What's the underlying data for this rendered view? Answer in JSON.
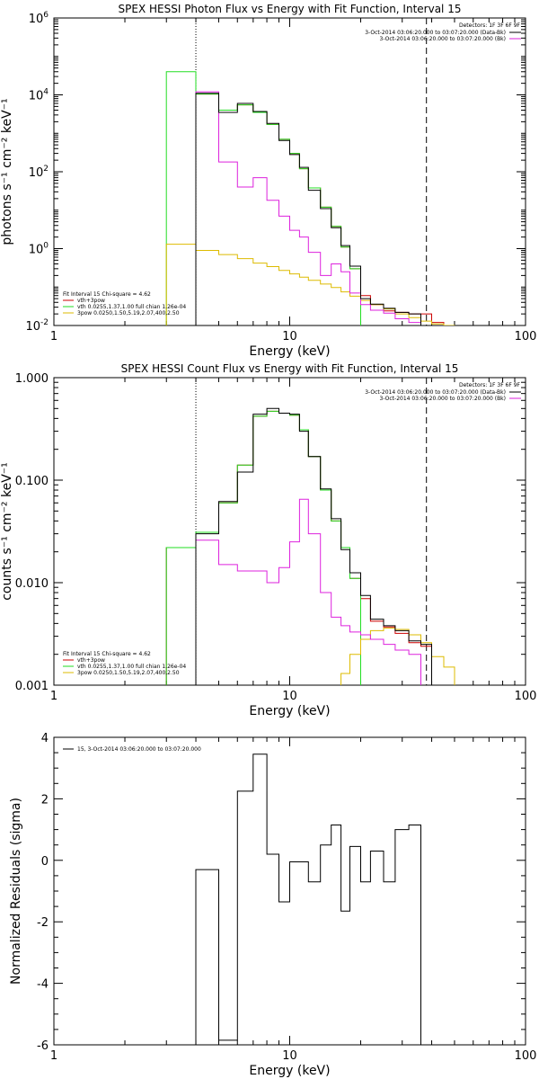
{
  "colors": {
    "black": "#000000",
    "red": "#cc0000",
    "green": "#22dd22",
    "magenta": "#dd22dd",
    "yellow": "#ddbb00"
  },
  "chart_data": [
    {
      "type": "line",
      "title": "SPEX HESSI Photon Flux vs Energy with Fit Function, Interval 15",
      "xlabel": "Energy (keV)",
      "ylabel": "photons s⁻¹ cm⁻² keV⁻¹",
      "xscale": "log",
      "yscale": "log",
      "xlim": [
        1,
        100
      ],
      "ylim": [
        0.01,
        1000000
      ],
      "x_tick_labels": [
        "1",
        "10",
        "100"
      ],
      "y_tick_labels": [
        "10^-2",
        "10^0",
        "10^2",
        "10^4",
        "10^6"
      ],
      "vlines": [
        {
          "x": 4,
          "style": "dotted"
        },
        {
          "x": 38,
          "style": "dashed"
        }
      ],
      "legend_top": {
        "title": "Detectors: 1F 3F 6F 9F",
        "entries": [
          "3-Oct-2014 03:06:20.000 to 03:07:20.000 (Data-Bk)",
          "3-Oct-2014 03:06:20.000 to 03:07:20.000 (Bk)"
        ]
      },
      "legend_bottom": {
        "header": "Fit Interval 15   Chi-square = 4.62",
        "entries": [
          "vth+3pow",
          "vth 0.0255,1.37,1.00  full chian 1.26e-04",
          "3pow 0.0250,1.50,5.19,2.07,400,2.50"
        ]
      },
      "x_edges": [
        3,
        4,
        5,
        6,
        7,
        8,
        9,
        10,
        11,
        12,
        13.5,
        15,
        16.5,
        18,
        20,
        22,
        25,
        28,
        32,
        36,
        40,
        45,
        50
      ],
      "series": [
        {
          "name": "vth+3pow",
          "color": "red",
          "values": [
            null,
            10500,
            4000,
            5500,
            3500,
            1700,
            700,
            300,
            120,
            38,
            12,
            3.8,
            1.1,
            0.3,
            0.06,
            0.035,
            0.024,
            0.022,
            0.02,
            0.02,
            0.012,
            0.01
          ]
        },
        {
          "name": "vth 0.0255,1.37,1.00  full chian 1.26e-04",
          "color": "green",
          "values": [
            40000,
            10500,
            4000,
            5500,
            3500,
            1700,
            700,
            300,
            120,
            38,
            12,
            3.8,
            1.1,
            0.3,
            null,
            null,
            null,
            null,
            null,
            null,
            null,
            null
          ]
        },
        {
          "name": "3pow 0.0250,1.50,5.19,2.07,400,2.50",
          "color": "yellow",
          "values": [
            1.3,
            0.9,
            0.7,
            0.55,
            0.42,
            0.34,
            0.27,
            0.22,
            0.18,
            0.15,
            0.12,
            0.097,
            0.075,
            0.058,
            0.045,
            0.035,
            0.027,
            0.02,
            0.016,
            0.013,
            0.011,
            0.01
          ]
        },
        {
          "name": "3-Oct-2014 03:06:20.000 to 03:07:20.000 (Bk)",
          "color": "magenta",
          "values": [
            null,
            12000,
            180,
            40,
            70,
            18,
            7,
            3,
            2,
            0.8,
            0.2,
            0.4,
            0.25,
            0.07,
            0.035,
            0.025,
            0.021,
            0.015,
            0.012,
            null,
            null,
            null
          ]
        },
        {
          "name": "3-Oct-2014 03:06:20.000 to 03:07:20.000 (Data-Bk)",
          "color": "black",
          "values": [
            null,
            11000,
            3500,
            6000,
            3700,
            1800,
            650,
            280,
            130,
            33,
            11,
            3.5,
            1.2,
            0.35,
            0.05,
            0.036,
            0.028,
            0.022,
            0.02,
            null,
            null,
            null
          ]
        }
      ]
    },
    {
      "type": "line",
      "title": "SPEX HESSI Count Flux vs Energy with Fit Function, Interval 15",
      "xlabel": "Energy (keV)",
      "ylabel": "counts s⁻¹ cm⁻² keV⁻¹",
      "xscale": "log",
      "yscale": "log",
      "xlim": [
        1,
        100
      ],
      "ylim": [
        0.001,
        1.0
      ],
      "x_tick_labels": [
        "1",
        "10",
        "100"
      ],
      "y_tick_labels": [
        "0.001",
        "0.010",
        "0.100",
        "1.000"
      ],
      "vlines": [
        {
          "x": 4,
          "style": "dotted"
        },
        {
          "x": 38,
          "style": "dashed"
        }
      ],
      "legend_top": {
        "title": "Detectors: 1F 3F 6F 9F",
        "entries": [
          "3-Oct-2014 03:06:20.000 to 03:07:20.000 (Data-Bk)",
          "3-Oct-2014 03:06:20.000 to 03:07:20.000 (Bk)"
        ]
      },
      "legend_bottom": {
        "header": "Fit Interval 15   Chi-square = 4.62",
        "entries": [
          "vth+3pow",
          "vth 0.0255,1.37,1.00  full chian 1.26e-04",
          "3pow 0.0250,1.50,5.19,2.07,400,2.50"
        ]
      },
      "x_edges": [
        3,
        4,
        5,
        6,
        7,
        8,
        9,
        10,
        11,
        12,
        13.5,
        15,
        16.5,
        18,
        20,
        22,
        25,
        28,
        32,
        36,
        40,
        45,
        50
      ],
      "series": [
        {
          "name": "vth+3pow",
          "color": "red",
          "values": [
            0.022,
            0.031,
            0.06,
            0.14,
            0.42,
            0.47,
            0.45,
            0.43,
            0.31,
            0.17,
            0.08,
            0.04,
            0.022,
            0.011,
            0.007,
            0.0042,
            0.0037,
            0.0032,
            0.0026,
            0.0024,
            null,
            null
          ]
        },
        {
          "name": "vth 0.0255,1.37,1.00  full chian 1.26e-04",
          "color": "green",
          "values": [
            0.022,
            0.031,
            0.06,
            0.14,
            0.42,
            0.47,
            0.45,
            0.43,
            0.31,
            0.17,
            0.08,
            0.04,
            0.022,
            0.011,
            null,
            null,
            null,
            null,
            null,
            null,
            null,
            null
          ]
        },
        {
          "name": "3pow 0.0250,1.50,5.19,2.07,400,2.50",
          "color": "yellow",
          "values": [
            null,
            null,
            null,
            null,
            null,
            null,
            null,
            null,
            null,
            null,
            null,
            null,
            0.0013,
            0.002,
            0.0028,
            0.0034,
            0.0036,
            0.0035,
            0.0031,
            0.0026,
            0.0019,
            0.0015
          ]
        },
        {
          "name": "3-Oct-2014 03:06:20.000 to 03:07:20.000 (Bk)",
          "color": "magenta",
          "values": [
            null,
            0.026,
            0.015,
            0.013,
            0.013,
            0.01,
            0.014,
            0.025,
            0.065,
            0.03,
            0.008,
            0.0046,
            0.0038,
            0.0033,
            0.0031,
            0.0028,
            0.0025,
            0.0022,
            0.002,
            null,
            null,
            null
          ]
        },
        {
          "name": "3-Oct-2014 03:06:20.000 to 03:07:20.000 (Data-Bk)",
          "color": "black",
          "values": [
            null,
            0.03,
            0.062,
            0.12,
            0.44,
            0.5,
            0.45,
            0.44,
            0.3,
            0.17,
            0.082,
            0.042,
            0.021,
            0.0125,
            0.0075,
            0.0044,
            0.0038,
            0.0034,
            0.0027,
            0.0025,
            null,
            null
          ]
        }
      ]
    },
    {
      "type": "line",
      "title": "",
      "xlabel": "Energy (keV)",
      "ylabel": "Normalized Residuals (sigma)",
      "xscale": "log",
      "yscale": "linear",
      "xlim": [
        1,
        100
      ],
      "ylim": [
        -6,
        4
      ],
      "x_tick_labels": [
        "1",
        "10",
        "100"
      ],
      "y_tick_labels": [
        "-6",
        "-4",
        "-2",
        "0",
        "2",
        "4"
      ],
      "legend_text": "15,  3-Oct-2014 03:06:20.000 to 03:07:20.000",
      "x_edges": [
        4,
        5,
        6,
        7,
        8,
        9,
        10,
        11,
        12,
        13.5,
        15,
        16.5,
        18,
        20,
        22,
        25,
        28,
        32,
        36
      ],
      "series": [
        {
          "name": "15,  3-Oct-2014 03:06:20.000 to 03:07:20.000",
          "color": "black",
          "values": [
            -0.3,
            -5.85,
            2.25,
            3.45,
            0.2,
            -1.35,
            -0.05,
            -0.05,
            -0.7,
            0.5,
            1.15,
            -1.65,
            0.45,
            -0.7,
            0.3,
            -0.7,
            1.0,
            1.15
          ]
        }
      ]
    }
  ]
}
